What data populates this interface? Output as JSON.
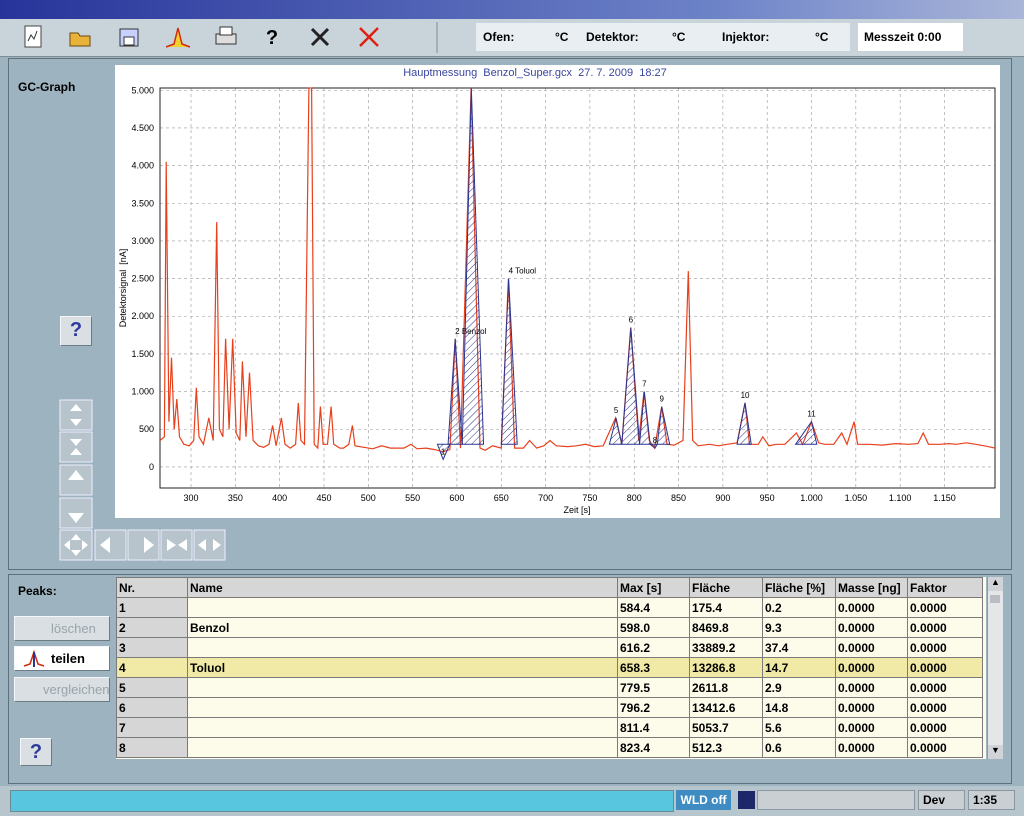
{
  "toolbar": {
    "help": "?",
    "status": {
      "oven_label": "Ofen:",
      "oven_unit": "°C",
      "detector_label": "Detektor:",
      "detector_unit": "°C",
      "injector_label": "Injektor:",
      "injector_unit": "°C",
      "time": "Messzeit 0:00"
    }
  },
  "graph_panel": {
    "title": "GC-Graph",
    "help": "?"
  },
  "graph": {
    "title": "Hauptmessung  Benzol_Super.gcx  27. 7. 2009  18:27",
    "ylabel": "Detektorsignal  [nA]",
    "xlabel": "Zeit [s]",
    "xlim": [
      265,
      1207
    ],
    "ylim": [
      -280,
      5030
    ],
    "xticks": [
      300,
      350,
      400,
      450,
      500,
      550,
      600,
      650,
      700,
      750,
      800,
      850,
      900,
      950,
      {
        "value": 1000,
        "label": "1.000"
      },
      {
        "value": 1050,
        "label": "1.050"
      },
      {
        "value": 1100,
        "label": "1.100"
      },
      {
        "value": 1150,
        "label": "1.150"
      }
    ],
    "yticks": [
      0,
      500,
      {
        "value": 1000,
        "label": "1.000"
      },
      {
        "value": 1500,
        "label": "1.500"
      },
      {
        "value": 2000,
        "label": "2.000"
      },
      {
        "value": 2500,
        "label": "2.500"
      },
      {
        "value": 3000,
        "label": "3.000"
      },
      {
        "value": 3500,
        "label": "3.500"
      },
      {
        "value": 4000,
        "label": "4.000"
      },
      {
        "value": 4500,
        "label": "4.500"
      },
      {
        "value": 5000,
        "label": "5.000"
      }
    ],
    "grid": true,
    "trace_color": "#e8401c",
    "peak_color": "#2a3590",
    "trace": {
      "x": [
        265,
        270,
        272,
        275,
        278,
        281,
        284,
        287,
        292,
        298,
        303,
        306,
        309,
        314,
        320,
        325,
        329,
        332,
        336,
        339,
        343,
        347,
        351,
        355,
        358,
        362,
        366,
        370,
        376,
        382,
        388,
        392,
        396,
        402,
        406,
        412,
        418,
        421,
        424,
        428,
        433,
        436,
        439,
        443,
        446,
        449,
        454,
        458,
        461,
        468,
        472,
        478,
        482,
        485,
        495,
        505,
        515,
        525,
        540,
        548,
        555,
        565,
        575,
        584,
        592,
        598,
        604,
        616,
        626,
        632,
        640,
        650,
        658,
        665,
        675,
        682,
        690,
        698,
        705,
        712,
        725,
        735,
        745,
        755,
        765,
        779,
        786,
        796,
        805,
        811,
        817,
        823,
        831,
        837,
        845,
        855,
        861,
        866,
        872,
        885,
        895,
        905,
        916,
        925,
        930,
        940,
        945,
        952,
        960,
        970,
        983,
        990,
        1000,
        1008,
        1015,
        1025,
        1034,
        1040,
        1048,
        1052,
        1065,
        1080,
        1095,
        1110,
        1120,
        1126,
        1132,
        1145,
        1155,
        1163,
        1175,
        1185,
        1195,
        1207
      ],
      "y": [
        350,
        400,
        4050,
        600,
        1450,
        500,
        900,
        400,
        300,
        280,
        350,
        1050,
        400,
        300,
        650,
        350,
        3250,
        500,
        400,
        1700,
        500,
        1700,
        450,
        350,
        1400,
        400,
        1250,
        350,
        280,
        260,
        300,
        550,
        280,
        650,
        300,
        250,
        300,
        850,
        350,
        300,
        5030,
        5030,
        300,
        250,
        800,
        300,
        300,
        800,
        300,
        250,
        250,
        300,
        550,
        280,
        260,
        240,
        280,
        250,
        250,
        300,
        240,
        250,
        230,
        200,
        230,
        1700,
        250,
        5030,
        250,
        220,
        280,
        250,
        2500,
        250,
        250,
        350,
        250,
        280,
        350,
        280,
        270,
        280,
        300,
        270,
        280,
        650,
        300,
        1850,
        350,
        1000,
        350,
        250,
        800,
        300,
        290,
        350,
        2600,
        350,
        280,
        300,
        280,
        300,
        320,
        850,
        300,
        300,
        400,
        280,
        300,
        300,
        450,
        300,
        600,
        320,
        300,
        300,
        450,
        300,
        600,
        300,
        300,
        290,
        310,
        300,
        310,
        450,
        300,
        300,
        310,
        300,
        320,
        300,
        280,
        250
      ]
    },
    "peaks": [
      {
        "label": "1",
        "start": 578,
        "max": 584.4,
        "end": 592,
        "height": 100
      },
      {
        "label": "2 Benzol",
        "start": 590,
        "max": 598,
        "end": 606,
        "height": 1700
      },
      {
        "label": null,
        "start": 606,
        "max": 616.2,
        "end": 630,
        "height": 5030
      },
      {
        "label": "4 Toluol",
        "start": 650,
        "max": 658.3,
        "end": 668,
        "height": 2500
      },
      {
        "label": "5",
        "start": 772,
        "max": 779.5,
        "end": 786,
        "height": 650
      },
      {
        "label": "6",
        "start": 786,
        "max": 796.2,
        "end": 806,
        "height": 1850
      },
      {
        "label": "7",
        "start": 806,
        "max": 811.4,
        "end": 818,
        "height": 1000
      },
      {
        "label": "8",
        "start": 818,
        "max": 823.4,
        "end": 826,
        "height": 250
      },
      {
        "label": "9",
        "start": 826,
        "max": 831,
        "end": 840,
        "height": 800
      },
      {
        "label": "10",
        "start": 916,
        "max": 925,
        "end": 932,
        "height": 850
      },
      {
        "label": "11",
        "start": 982,
        "max": 1000,
        "end": 1006,
        "height": 600
      }
    ]
  },
  "peaks_panel": {
    "title": "Peaks:",
    "buttons": [
      "löschen",
      "teilen",
      "vergleichen"
    ],
    "help": "?"
  },
  "table": {
    "columns": [
      "Nr.",
      "Name",
      "Max [s]",
      "Fläche",
      "Fläche [%]",
      "Masse [ng]",
      "Faktor"
    ],
    "rows": [
      [
        "1",
        null,
        "584.4",
        "175.4",
        "0.2",
        "0.0000",
        "0.0000"
      ],
      [
        "2",
        "Benzol",
        "598.0",
        "8469.8",
        "9.3",
        "0.0000",
        "0.0000"
      ],
      [
        "3",
        null,
        "616.2",
        "33889.2",
        "37.4",
        "0.0000",
        "0.0000"
      ],
      [
        "4",
        "Toluol",
        "658.3",
        "13286.8",
        "14.7",
        "0.0000",
        "0.0000"
      ],
      [
        "5",
        null,
        "779.5",
        "2611.8",
        "2.9",
        "0.0000",
        "0.0000"
      ],
      [
        "6",
        null,
        "796.2",
        "13412.6",
        "14.8",
        "0.0000",
        "0.0000"
      ],
      [
        "7",
        null,
        "811.4",
        "5053.7",
        "5.6",
        "0.0000",
        "0.0000"
      ],
      [
        "8",
        null,
        "823.4",
        "512.3",
        "0.6",
        "0.0000",
        "0.0000"
      ]
    ]
  },
  "statusbar": {
    "wld": "WLD off",
    "mode": "Dev",
    "time": "1:35"
  }
}
